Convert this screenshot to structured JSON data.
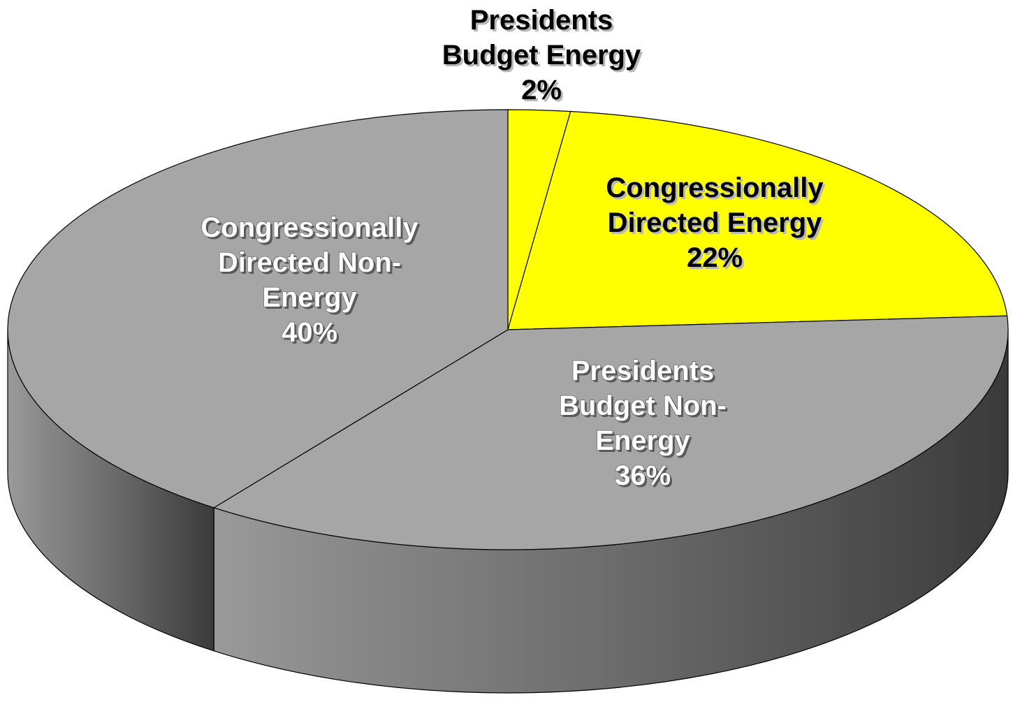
{
  "colors": {
    "energy": "#ffff00",
    "non_energy": "#a6a6a6",
    "outline": "#000000"
  },
  "chart_data": {
    "type": "pie",
    "three_d": true,
    "slices": [
      {
        "label": "Presidents Budget Energy",
        "value": 2,
        "display": "2%",
        "color": "#ffff00"
      },
      {
        "label": "Congressionally Directed Energy",
        "value": 22,
        "display": "22%",
        "color": "#ffff00"
      },
      {
        "label": "Presidents Budget Non-Energy",
        "value": 36,
        "display": "36%",
        "color": "#a6a6a6"
      },
      {
        "label": "Congressionally Directed Non-Energy",
        "value": 40,
        "display": "40%",
        "color": "#a6a6a6"
      }
    ],
    "labels": [
      {
        "lines": [
          "Presidents",
          "Budget Energy",
          "2%"
        ]
      },
      {
        "lines": [
          "Congressionally",
          "Directed Energy",
          "22%"
        ]
      },
      {
        "lines": [
          "Presidents",
          "Budget Non-",
          "Energy",
          "36%"
        ]
      },
      {
        "lines": [
          "Congressionally",
          "Directed Non-",
          "Energy",
          "40%"
        ]
      }
    ]
  }
}
